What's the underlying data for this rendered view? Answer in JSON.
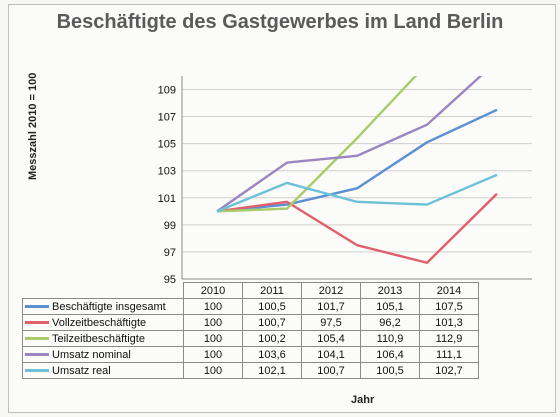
{
  "chart_data": {
    "type": "line",
    "title": "Beschäftigte des Gastgewerbes im Land Berlin",
    "xlabel": "Jahr",
    "ylabel": "Messzahl 2010 = 100",
    "categories": [
      "2010",
      "2011",
      "2012",
      "2013",
      "2014"
    ],
    "ylim": [
      95,
      110
    ],
    "yticks": [
      "95",
      "97",
      "99",
      "101",
      "103",
      "105",
      "107",
      "109"
    ],
    "grid": true,
    "legend": "data table below chart",
    "series": [
      {
        "name": "Beschäftigte insgesamt",
        "color": "#5b8fd0",
        "values": [
          100,
          100.5,
          101.7,
          105.1,
          107.5
        ],
        "labels": [
          "100",
          "100,5",
          "101,7",
          "105,1",
          "107,5"
        ]
      },
      {
        "name": "Vollzeitbeschäftigte",
        "color": "#e0606a",
        "values": [
          100,
          100.7,
          97.5,
          96.2,
          101.3
        ],
        "labels": [
          "100",
          "100,7",
          "97,5",
          "96,2",
          "101,3"
        ]
      },
      {
        "name": "Teilzeitbeschäftigte",
        "color": "#a9cc6a",
        "values": [
          100,
          100.2,
          105.4,
          110.9,
          112.9
        ],
        "labels": [
          "100",
          "100,2",
          "105,4",
          "110,9",
          "112,9"
        ]
      },
      {
        "name": "Umsatz nominal",
        "color": "#9a86c0",
        "values": [
          100,
          103.6,
          104.1,
          106.4,
          111.1
        ],
        "labels": [
          "100",
          "103,6",
          "104,1",
          "106,4",
          "111,1"
        ]
      },
      {
        "name": "Umsatz real",
        "color": "#6cc0d8",
        "values": [
          100,
          102.1,
          100.7,
          100.5,
          102.7
        ],
        "labels": [
          "100",
          "102,1",
          "100,7",
          "100,5",
          "102,7"
        ]
      }
    ]
  }
}
